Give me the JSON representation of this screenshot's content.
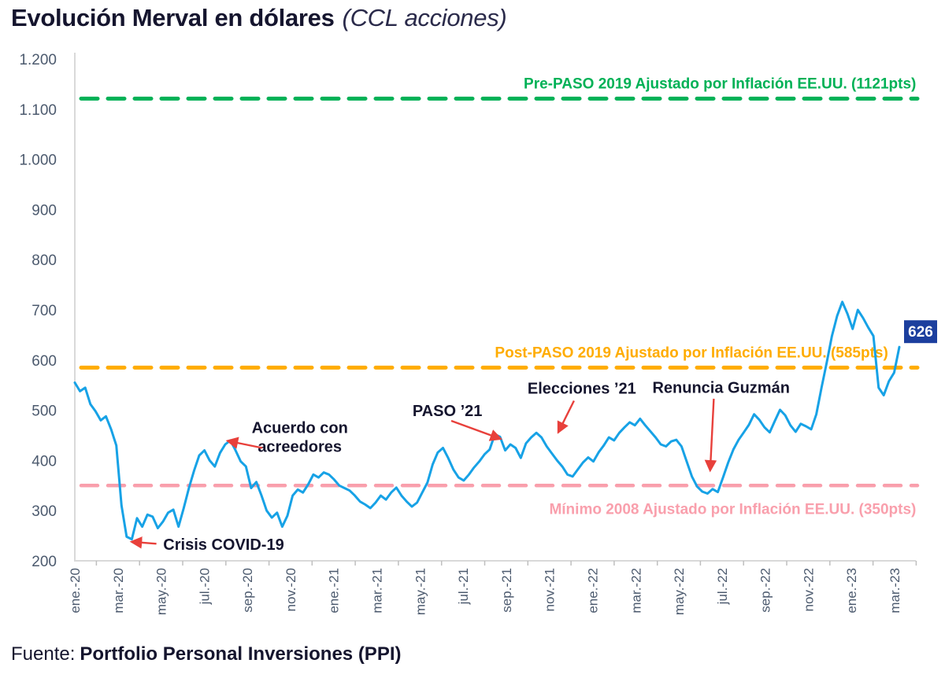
{
  "page": {
    "title": "Evolución Merval en dólares",
    "subtitle": "(CCL acciones)",
    "source_prefix": "Fuente:",
    "source_name": "Portfolio Personal Inversiones (PPI)"
  },
  "chart_data": {
    "type": "line",
    "title": "Evolución Merval en dólares (CCL acciones)",
    "xlabel": "",
    "ylabel": "",
    "ylim": [
      200,
      1200
    ],
    "grid": false,
    "yticks": [
      1200,
      1100,
      1000,
      900,
      800,
      700,
      600,
      500,
      400,
      300,
      200
    ],
    "ytick_labels": [
      "1.200",
      "1.100",
      "1.000",
      "900",
      "800",
      "700",
      "600",
      "500",
      "400",
      "300",
      "200"
    ],
    "xtick_labels": [
      "ene.-20",
      "mar.-20",
      "may.-20",
      "jul.-20",
      "sep.-20",
      "nov.-20",
      "ene.-21",
      "mar.-21",
      "may.-21",
      "jul.-21",
      "sep.-21",
      "nov.-21",
      "ene.-22",
      "mar.-22",
      "may.-22",
      "jul.-22",
      "sep.-22",
      "nov.-22",
      "ene.-23",
      "mar.-23"
    ],
    "x_note": "weekly points from ene-2020 to abr-2023, x tick labels every 2 months",
    "series": [
      {
        "name": "Merval en dólares (CCL acciones)",
        "color": "#17A2E6",
        "values": [
          555,
          538,
          545,
          512,
          498,
          480,
          488,
          462,
          430,
          310,
          248,
          243,
          285,
          268,
          292,
          288,
          265,
          278,
          296,
          302,
          268,
          305,
          345,
          380,
          410,
          420,
          400,
          388,
          415,
          432,
          440,
          420,
          398,
          388,
          345,
          357,
          330,
          300,
          286,
          296,
          268,
          290,
          330,
          342,
          336,
          352,
          372,
          366,
          376,
          372,
          362,
          350,
          345,
          340,
          330,
          318,
          312,
          305,
          316,
          330,
          322,
          336,
          346,
          330,
          318,
          308,
          316,
          336,
          356,
          392,
          416,
          425,
          405,
          382,
          366,
          360,
          372,
          386,
          398,
          412,
          422,
          452,
          447,
          420,
          432,
          425,
          405,
          434,
          446,
          455,
          446,
          428,
          414,
          400,
          388,
          372,
          368,
          382,
          396,
          406,
          398,
          416,
          430,
          446,
          440,
          455,
          466,
          476,
          470,
          483,
          470,
          458,
          446,
          432,
          428,
          438,
          441,
          428,
          398,
          368,
          348,
          338,
          334,
          343,
          337,
          366,
          396,
          422,
          441,
          456,
          471,
          492,
          481,
          466,
          456,
          479,
          501,
          490,
          470,
          457,
          473,
          468,
          462,
          492,
          545,
          595,
          648,
          688,
          716,
          692,
          662,
          700,
          684,
          665,
          648,
          545,
          530,
          558,
          575,
          626
        ]
      }
    ],
    "last_value_label": {
      "text": "626",
      "bg_color": "#1C3F9E",
      "text_color": "#FFFFFF"
    },
    "ref_lines": [
      {
        "label": "Pre-PASO 2019 Ajustado por Inflación EE.UU. (1121pts)",
        "value": 1121,
        "color": "#00B156",
        "width": 5,
        "label_side": "above",
        "label_end_month": 39.0
      },
      {
        "label": "Post-PASO 2019 Ajustado por Inflación EE.UU. (585pts)",
        "value": 585,
        "color": "#FFAC00",
        "width": 5,
        "label_side": "above",
        "label_end_month": 37.7
      },
      {
        "label": "Mínimo 2008 Ajustado por Inflación EE.UU. (350pts)",
        "value": 350,
        "color": "#F99FAC",
        "width": 4.5,
        "label_side": "below",
        "label_end_month": 39.0
      }
    ],
    "annotations": [
      {
        "lines": [
          "Crisis COVID-19"
        ],
        "anchor": "start",
        "label_m": 4.1,
        "label_v": 233,
        "arrow": {
          "from_m": 3.78,
          "from_v": 234,
          "to_m": 2.63,
          "to_v": 238
        }
      },
      {
        "lines": [
          "Acuerdo con",
          "acreedores"
        ],
        "anchor": "middle",
        "label_m": 10.43,
        "label_v": 447,
        "arrow": {
          "from_m": 8.69,
          "from_v": 425,
          "to_m": 7.08,
          "to_v": 439
        }
      },
      {
        "lines": [
          "PASO ’21"
        ],
        "anchor": "middle",
        "label_m": 17.27,
        "label_v": 499,
        "arrow": {
          "from_m": 17.45,
          "from_v": 479,
          "to_m": 19.74,
          "to_v": 443
        }
      },
      {
        "lines": [
          "Elecciones ’21"
        ],
        "anchor": "middle",
        "label_m": 23.5,
        "label_v": 544,
        "arrow": {
          "from_m": 23.14,
          "from_v": 519,
          "to_m": 22.41,
          "to_v": 456
        }
      },
      {
        "lines": [
          "Renuncia Guzmán"
        ],
        "anchor": "middle",
        "label_m": 29.96,
        "label_v": 546,
        "arrow": {
          "from_m": 29.62,
          "from_v": 523,
          "to_m": 29.45,
          "to_v": 380
        }
      }
    ],
    "arrow_color": "#E8403B",
    "axis_color": "#D9D9D9",
    "tick_color": "#BFBFBF",
    "axis_text_color": "#4C5A6E",
    "legend": "none"
  }
}
